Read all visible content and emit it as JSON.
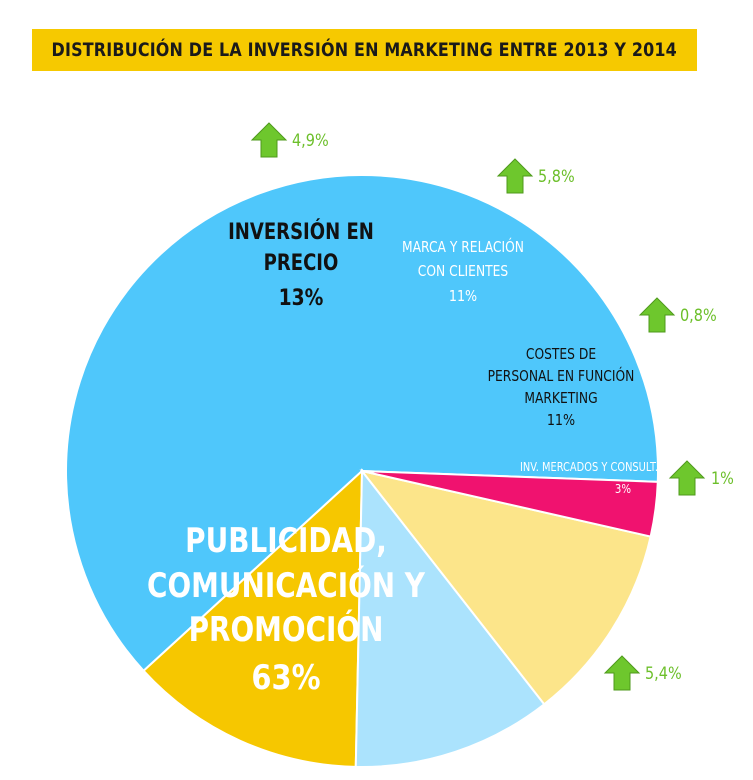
{
  "chart_data": {
    "type": "pie",
    "title": "DISTRIBUCIÓN DE LA INVERSIÓN EN MARKETING ENTRE 2013 Y 2014",
    "slices": [
      {
        "id": "publicidad",
        "label_lines": [
          "PUBLICIDAD,",
          "COMUNICACIÓN Y",
          "PROMOCIÓN"
        ],
        "value": 63,
        "value_label": "63%",
        "color": "#4fc7fb",
        "text_color": "#ffffff",
        "change": "5,4%"
      },
      {
        "id": "precio",
        "label_lines": [
          "INVERSIÓN EN",
          "PRECIO"
        ],
        "value": 13,
        "value_label": "13%",
        "color": "#f6c700",
        "text_color": "#111111",
        "change": "4,9%"
      },
      {
        "id": "marca",
        "label_lines": [
          "MARCA Y RELACIÓN",
          "CON CLIENTES"
        ],
        "value": 11,
        "value_label": "11%",
        "color": "#abe3fd",
        "text_color": "#ffffff",
        "change": "5,8%"
      },
      {
        "id": "personal",
        "label_lines": [
          "COSTES DE",
          "PERSONAL EN FUNCIÓN",
          "MARKETING"
        ],
        "value": 11,
        "value_label": "11%",
        "color": "#fce58a",
        "text_color": "#111111",
        "change": "0,8%"
      },
      {
        "id": "mercados",
        "label_lines": [
          "INV. MERCADOS Y CONSULT."
        ],
        "value": 3,
        "value_label": "3%",
        "color": "#f0126f",
        "text_color": "#ffffff",
        "change": "1%"
      }
    ],
    "change_color": "#6cbf2a",
    "arrow_color": "#6ec72d",
    "legend": "none"
  }
}
